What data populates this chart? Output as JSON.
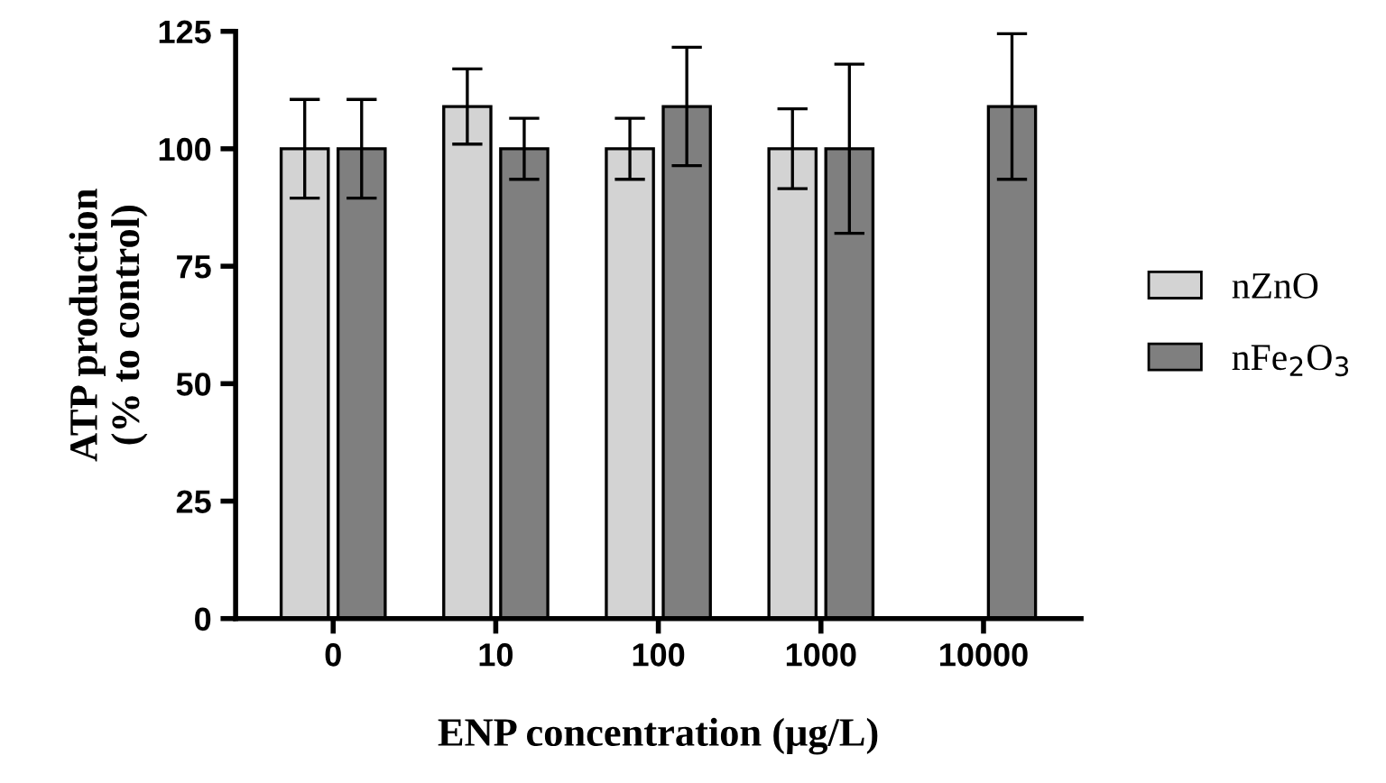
{
  "chart_data": {
    "type": "bar",
    "xlabel": "ENP concentration (μg/L)",
    "ylabel": "ATP production\n(% to control)",
    "categories": [
      "0",
      "10",
      "100",
      "1000",
      "10000"
    ],
    "series": [
      {
        "name": "nZnO",
        "color": "#d3d3d3",
        "values": [
          100,
          109,
          100,
          100,
          null
        ],
        "errors": [
          10.5,
          8,
          6.5,
          8.5,
          null
        ]
      },
      {
        "name": "nFe$_{2}$O$_{3}$",
        "color": "#7f7f7f",
        "values": [
          100,
          100,
          109,
          100,
          109
        ],
        "errors": [
          10.5,
          6.5,
          12.6,
          18,
          15.5
        ]
      }
    ],
    "ylim": [
      0,
      125
    ],
    "yticks": [
      0,
      25,
      50,
      75,
      100,
      125
    ],
    "grid": false,
    "legend": "right"
  }
}
